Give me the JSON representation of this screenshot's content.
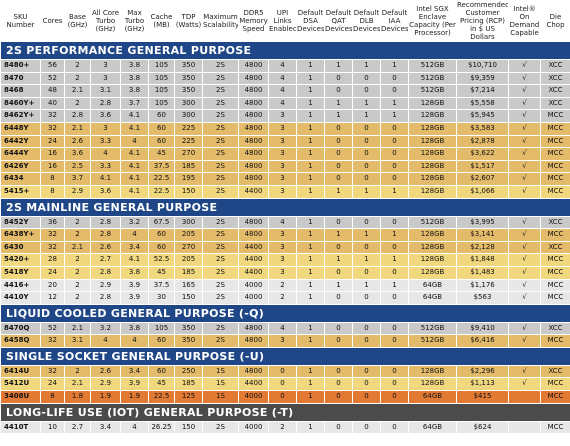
{
  "table": {
    "headers": [
      "SKU Number",
      "Cores",
      "Base (GHz)",
      "All Core Turbo (GHz)",
      "Max Turbo (GHz)",
      "Cache (MB)",
      "TDP (Watts)",
      "Maximum Scalability",
      "DDR5 Memory Speed",
      "UPI Links Enabled",
      "Default DSA Devices",
      "Default QAT Devices",
      "Default DLB Devices",
      "Default IAA Devices",
      "Intel SGX Enclave Capacity (Per Processor)",
      "Recommended Customer Pricing (RCP) in $ US Dollars",
      "Intel® On Demand Capable",
      "Die Chop"
    ],
    "sections": [
      {
        "title": "2S PERFORMANCE GENERAL PURPOSE",
        "rows": [
          [
            "8480+",
            "56",
            "2",
            "3",
            "3.8",
            "105",
            "350",
            "2S",
            "4800",
            "4",
            "1",
            "1",
            "1",
            "1",
            "512GB",
            "$10,710",
            "√",
            "XCC"
          ],
          [
            "8470",
            "52",
            "2",
            "3",
            "3.8",
            "105",
            "350",
            "2S",
            "4800",
            "4",
            "1",
            "0",
            "0",
            "0",
            "512GB",
            "$9,359",
            "√",
            "XCC"
          ],
          [
            "8468",
            "48",
            "2.1",
            "3.1",
            "3.8",
            "105",
            "350",
            "2S",
            "4800",
            "4",
            "1",
            "0",
            "0",
            "0",
            "512GB",
            "$7,214",
            "√",
            "XCC"
          ],
          [
            "8460Y+",
            "40",
            "2",
            "2.8",
            "3.7",
            "105",
            "300",
            "2S",
            "4800",
            "4",
            "1",
            "1",
            "1",
            "1",
            "128GB",
            "$5,558",
            "√",
            "XCC"
          ],
          [
            "8462Y+",
            "32",
            "2.8",
            "3.6",
            "4.1",
            "60",
            "300",
            "2S",
            "4800",
            "3",
            "1",
            "1",
            "1",
            "1",
            "128GB",
            "$5,945",
            "√",
            "MCC"
          ],
          [
            "6448Y",
            "32",
            "2.1",
            "3",
            "4.1",
            "60",
            "225",
            "2S",
            "4800",
            "3",
            "1",
            "0",
            "0",
            "0",
            "128GB",
            "$3,583",
            "√",
            "MCC"
          ],
          [
            "6442Y",
            "24",
            "2.6",
            "3.3",
            "4",
            "60",
            "225",
            "2S",
            "4800",
            "3",
            "1",
            "0",
            "0",
            "0",
            "128GB",
            "$2,878",
            "√",
            "MCC"
          ],
          [
            "6444Y",
            "16",
            "3.6",
            "4",
            "4.1",
            "45",
            "270",
            "2S",
            "4800",
            "3",
            "1",
            "0",
            "0",
            "0",
            "128GB",
            "$3,622",
            "√",
            "MCC"
          ],
          [
            "6426Y",
            "16",
            "2.5",
            "3.3",
            "4.1",
            "37.5",
            "185",
            "2S",
            "4800",
            "3",
            "1",
            "0",
            "0",
            "0",
            "128GB",
            "$1,517",
            "√",
            "MCC"
          ],
          [
            "6434",
            "8",
            "3.7",
            "4.1",
            "4.1",
            "22.5",
            "195",
            "2S",
            "4800",
            "3",
            "1",
            "0",
            "0",
            "0",
            "128GB",
            "$2,607",
            "√",
            "MCC"
          ],
          [
            "5415+",
            "8",
            "2.9",
            "3.6",
            "4.1",
            "22.5",
            "150",
            "2S",
            "4400",
            "3",
            "1",
            "1",
            "1",
            "1",
            "128GB",
            "$1,066",
            "√",
            "MCC"
          ]
        ]
      },
      {
        "title": "2S MAINLINE GENERAL PURPOSE",
        "rows": [
          [
            "8452Y",
            "36",
            "2",
            "2.8",
            "3.2",
            "67.5",
            "300",
            "2S",
            "4800",
            "4",
            "1",
            "0",
            "0",
            "0",
            "512GB",
            "$3,995",
            "√",
            "XCC"
          ],
          [
            "6438Y+",
            "32",
            "2",
            "2.8",
            "4",
            "60",
            "205",
            "2S",
            "4800",
            "3",
            "1",
            "1",
            "1",
            "1",
            "128GB",
            "$3,141",
            "√",
            "MCC"
          ],
          [
            "6430",
            "32",
            "2.1",
            "2.6",
            "3.4",
            "60",
            "270",
            "2S",
            "4400",
            "3",
            "1",
            "0",
            "0",
            "0",
            "128GB",
            "$2,128",
            "√",
            "XCC"
          ],
          [
            "5420+",
            "28",
            "2",
            "2.7",
            "4.1",
            "52.5",
            "205",
            "2S",
            "4400",
            "3",
            "1",
            "1",
            "1",
            "1",
            "128GB",
            "$1,848",
            "√",
            "MCC"
          ],
          [
            "5418Y",
            "24",
            "2",
            "2.8",
            "3.8",
            "45",
            "185",
            "2S",
            "4400",
            "3",
            "1",
            "0",
            "0",
            "0",
            "128GB",
            "$1,483",
            "√",
            "MCC"
          ],
          [
            "4416+",
            "20",
            "2",
            "2.9",
            "3.9",
            "37.5",
            "165",
            "2S",
            "4000",
            "2",
            "1",
            "1",
            "1",
            "1",
            "64GB",
            "$1,176",
            "√",
            "MCC"
          ],
          [
            "4410Y",
            "12",
            "2",
            "2.8",
            "3.9",
            "30",
            "150",
            "2S",
            "4000",
            "2",
            "1",
            "0",
            "0",
            "0",
            "64GB",
            "$563",
            "√",
            "MCC"
          ]
        ]
      },
      {
        "title": "LIQUID COOLED GENERAL PURPOSE (-Q)",
        "rows": [
          [
            "8470Q",
            "52",
            "2.1",
            "3.2",
            "3.8",
            "105",
            "350",
            "2S",
            "4800",
            "4",
            "1",
            "0",
            "0",
            "0",
            "512GB",
            "$9,410",
            "√",
            "XCC"
          ],
          [
            "6458Q",
            "32",
            "3.1",
            "4",
            "4",
            "60",
            "350",
            "2S",
            "4800",
            "3",
            "1",
            "0",
            "0",
            "0",
            "512GB",
            "$6,416",
            "√",
            "MCC"
          ]
        ]
      },
      {
        "title": "SINGLE SOCKET GENERAL PURPOSE (-U)",
        "rows": [
          [
            "6414U",
            "32",
            "2",
            "2.6",
            "3.4",
            "60",
            "250",
            "1S",
            "4800",
            "0",
            "1",
            "0",
            "0",
            "0",
            "128GB",
            "$2,296",
            "√",
            "XCC"
          ],
          [
            "5412U",
            "24",
            "2.1",
            "2.9",
            "3.9",
            "45",
            "185",
            "1S",
            "4400",
            "0",
            "1",
            "0",
            "0",
            "0",
            "128GB",
            "$1,113",
            "√",
            "MCC"
          ],
          [
            "3408U",
            "8",
            "1.8",
            "1.9",
            "1.9",
            "22.5",
            "125",
            "1S",
            "4000",
            "0",
            "1",
            "0",
            "0",
            "0",
            "64GB",
            "$415",
            null,
            "MCC"
          ]
        ]
      },
      {
        "title": "LONG-LIFE USE (IOT) GENERAL PURPOSE (-T)",
        "rows": [
          [
            "4410T",
            "10",
            "2.7",
            "3.4",
            "4",
            "26.25",
            "150",
            "2S",
            "4000",
            "2",
            "1",
            "0",
            "0",
            "0",
            "64GB",
            "$624",
            null,
            "MCC"
          ]
        ]
      }
    ]
  }
}
